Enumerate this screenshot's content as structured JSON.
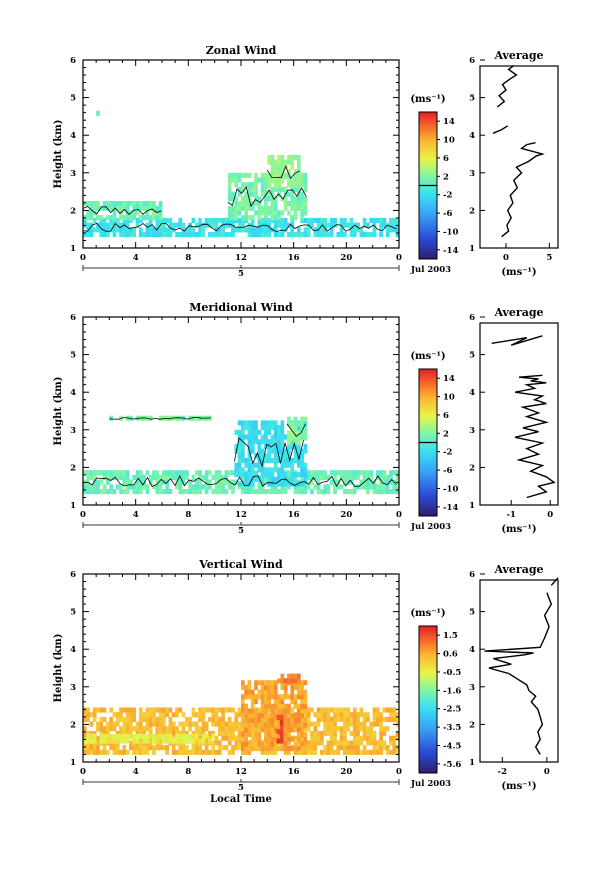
{
  "figure": {
    "date_label": "Jul 2003",
    "day_label": "5",
    "bottom_xlabel": "Local Time",
    "unit_label": "(ms⁻¹)",
    "avg_unit_label": "(ms⁻¹)",
    "avg_title": "Average",
    "ylabel": "Height (km)"
  },
  "chart_data": [
    {
      "type": "heatmap",
      "title": "Zonal Wind",
      "ylabel": "Height (km)",
      "x_ticks": [
        "0",
        "4",
        "8",
        "12",
        "16",
        "20",
        "0"
      ],
      "y_ticks": [
        "1",
        "2",
        "3",
        "4",
        "5",
        "6"
      ],
      "xlim": [
        0,
        24
      ],
      "ylim": [
        1,
        6
      ],
      "colorbar": {
        "unit": "(ms⁻¹)",
        "ticks": [
          "14",
          "10",
          "6",
          "2",
          "-2",
          "-6",
          "-10",
          "-14"
        ],
        "range": [
          -16,
          16
        ],
        "zero_line": 0
      },
      "regions": [
        {
          "x": [
            0,
            24
          ],
          "y": [
            1.3,
            1.75
          ],
          "value": -1.5
        },
        {
          "x": [
            0,
            6
          ],
          "y": [
            1.75,
            2.2
          ],
          "value": 1
        },
        {
          "x": [
            11,
            17
          ],
          "y": [
            1.75,
            2.9
          ],
          "value": 1.5
        },
        {
          "x": [
            14,
            16.5
          ],
          "y": [
            2.6,
            3.4
          ],
          "value": 3
        },
        {
          "x": [
            1,
            1.2
          ],
          "y": [
            4.4,
            4.6
          ],
          "value": 1
        }
      ],
      "average": {
        "title": "Average",
        "unit": "(ms⁻¹)",
        "x_ticks": [
          "0",
          "5"
        ],
        "y_ticks": [
          "1",
          "2",
          "3",
          "4",
          "5",
          "6"
        ],
        "xlim": [
          -3,
          6
        ],
        "ylim": [
          1,
          6
        ],
        "segments": [
          {
            "x": [
              -0.5,
              0.3,
              0.1,
              0.6,
              0.2,
              0.8,
              0.5,
              1.3,
              0.9,
              1.8,
              1.2,
              2.6,
              3.5,
              4.2,
              1.8,
              2.4,
              3.4
            ],
            "y": [
              1.3,
              1.45,
              1.6,
              1.8,
              2.0,
              2.2,
              2.4,
              2.6,
              2.8,
              3.0,
              3.15,
              3.3,
              3.45,
              3.5,
              3.65,
              3.75,
              3.8
            ]
          },
          {
            "x": [
              -1.5,
              -0.5,
              0.2
            ],
            "y": [
              4.05,
              4.15,
              4.25
            ]
          },
          {
            "x": [
              -1.0,
              -0.2,
              -0.8,
              0.0,
              -0.4,
              0.5,
              1.2,
              0.3,
              0.9
            ],
            "y": [
              4.75,
              4.9,
              5.05,
              5.2,
              5.35,
              5.5,
              5.6,
              5.75,
              5.85
            ]
          }
        ]
      }
    },
    {
      "type": "heatmap",
      "title": "Meridional Wind",
      "ylabel": "Height (km)",
      "x_ticks": [
        "0",
        "4",
        "8",
        "12",
        "16",
        "20",
        "0"
      ],
      "y_ticks": [
        "1",
        "2",
        "3",
        "4",
        "5",
        "6"
      ],
      "xlim": [
        0,
        24
      ],
      "ylim": [
        1,
        6
      ],
      "colorbar": {
        "unit": "(ms⁻¹)",
        "ticks": [
          "14",
          "10",
          "6",
          "2",
          "-2",
          "-6",
          "-10",
          "-14"
        ],
        "range": [
          -16,
          16
        ],
        "zero_line": 0
      },
      "regions": [
        {
          "x": [
            0,
            24
          ],
          "y": [
            1.3,
            1.9
          ],
          "value": 1
        },
        {
          "x": [
            11.5,
            17
          ],
          "y": [
            1.5,
            3.2
          ],
          "value": -2
        },
        {
          "x": [
            15.5,
            17
          ],
          "y": [
            2.6,
            3.3
          ],
          "value": 2
        },
        {
          "x": [
            2,
            10
          ],
          "y": [
            3.25,
            3.35
          ],
          "value": 2
        }
      ],
      "average": {
        "title": "Average",
        "unit": "(ms⁻¹)",
        "x_ticks": [
          "-1",
          "0"
        ],
        "y_ticks": [
          "1",
          "2",
          "3",
          "4",
          "5",
          "6"
        ],
        "xlim": [
          -1.8,
          0.2
        ],
        "ylim": [
          1,
          6
        ],
        "segments": [
          {
            "x": [
              -0.6,
              -0.1,
              -0.3,
              0.1,
              -0.1,
              -0.5,
              -0.2,
              -0.8,
              -0.3,
              -0.6,
              -0.2,
              -0.9,
              -0.3,
              -0.7,
              -0.1,
              -0.6,
              -0.3,
              -0.7,
              -0.1,
              -0.4,
              -0.2,
              -0.9,
              -0.4,
              -0.6,
              -0.1,
              -0.5,
              -0.3,
              -0.8,
              -0.2
            ],
            "y": [
              1.2,
              1.35,
              1.5,
              1.6,
              1.75,
              1.9,
              2.05,
              2.2,
              2.35,
              2.5,
              2.65,
              2.8,
              2.95,
              3.05,
              3.2,
              3.35,
              3.45,
              3.6,
              3.7,
              3.8,
              3.9,
              4.0,
              4.1,
              4.2,
              4.25,
              4.3,
              4.35,
              4.4,
              4.45
            ]
          },
          {
            "x": [
              -1.5,
              -0.6,
              -1.0,
              -0.2
            ],
            "y": [
              5.3,
              5.45,
              5.25,
              5.5
            ]
          }
        ]
      }
    },
    {
      "type": "heatmap",
      "title": "Vertical Wind",
      "ylabel": "Height (km)",
      "xlabel": "Local Time",
      "x_ticks": [
        "0",
        "4",
        "8",
        "12",
        "16",
        "20",
        "0"
      ],
      "y_ticks": [
        "1",
        "2",
        "3",
        "4",
        "5",
        "6"
      ],
      "xlim": [
        0,
        24
      ],
      "ylim": [
        1,
        6
      ],
      "colorbar": {
        "unit": "(ms⁻¹)",
        "ticks": [
          "1.5",
          "0.6",
          "-0.5",
          "-1.6",
          "-2.5",
          "-3.5",
          "-4.5",
          "-5.6"
        ],
        "range": [
          -6,
          2
        ],
        "zero_line": null
      },
      "regions": [
        {
          "x": [
            0,
            24
          ],
          "y": [
            1.2,
            2.4
          ],
          "value": 0.3
        },
        {
          "x": [
            0,
            10
          ],
          "y": [
            1.5,
            1.65
          ],
          "value": -0.5
        },
        {
          "x": [
            12,
            17
          ],
          "y": [
            1.3,
            3.1
          ],
          "value": 0.6
        },
        {
          "x": [
            14.7,
            15.1
          ],
          "y": [
            1.5,
            2.2
          ],
          "value": 1.5
        },
        {
          "x": [
            14.5,
            16.5
          ],
          "y": [
            3.1,
            3.25
          ],
          "value": 1.0
        }
      ],
      "average": {
        "title": "Average",
        "unit": "(ms⁻¹)",
        "x_ticks": [
          "-2",
          "0"
        ],
        "y_ticks": [
          "1",
          "2",
          "3",
          "4",
          "5",
          "6"
        ],
        "xlim": [
          -3,
          0.5
        ],
        "ylim": [
          1,
          6
        ],
        "segments": [
          {
            "x": [
              -0.3,
              -0.5,
              -0.3,
              -0.4,
              -0.2,
              -0.3,
              -0.4,
              -0.7,
              -0.5,
              -0.8,
              -0.9,
              -1.3,
              -1.7,
              -2.6,
              -1.6,
              -2.4,
              -1.0,
              -0.6,
              -2.8,
              -0.3,
              -0.1,
              0.1,
              -0.1,
              0.2,
              0.0
            ],
            "y": [
              1.2,
              1.4,
              1.6,
              1.8,
              2.0,
              2.2,
              2.4,
              2.6,
              2.75,
              2.9,
              3.05,
              3.2,
              3.35,
              3.5,
              3.6,
              3.75,
              3.85,
              3.9,
              3.95,
              4.05,
              4.3,
              4.6,
              4.9,
              5.2,
              5.5
            ]
          },
          {
            "x": [
              0.2,
              0.5
            ],
            "y": [
              5.7,
              5.9
            ]
          }
        ]
      }
    }
  ]
}
